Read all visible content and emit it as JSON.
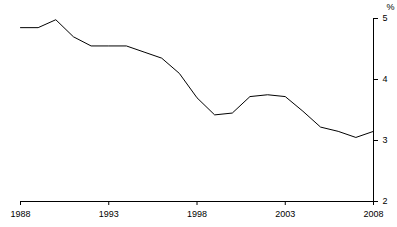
{
  "chart_data": {
    "type": "line",
    "x": [
      1988,
      1989,
      1990,
      1991,
      1992,
      1993,
      1994,
      1995,
      1996,
      1997,
      1998,
      1999,
      2000,
      2001,
      2002,
      2003,
      2004,
      2005,
      2006,
      2007,
      2008
    ],
    "values": [
      4.85,
      4.85,
      4.98,
      4.7,
      4.55,
      4.55,
      4.55,
      4.45,
      4.35,
      4.1,
      3.7,
      3.42,
      3.45,
      3.72,
      3.75,
      3.72,
      3.48,
      3.22,
      3.15,
      3.05,
      3.15
    ],
    "color": "#000000",
    "y_label": "%",
    "xlim": [
      1988,
      2008
    ],
    "xticks": [
      1988,
      1993,
      1998,
      2003,
      2008
    ],
    "ylim": [
      2,
      5
    ],
    "yticks": [
      2,
      3,
      4,
      5
    ],
    "grid": false
  }
}
